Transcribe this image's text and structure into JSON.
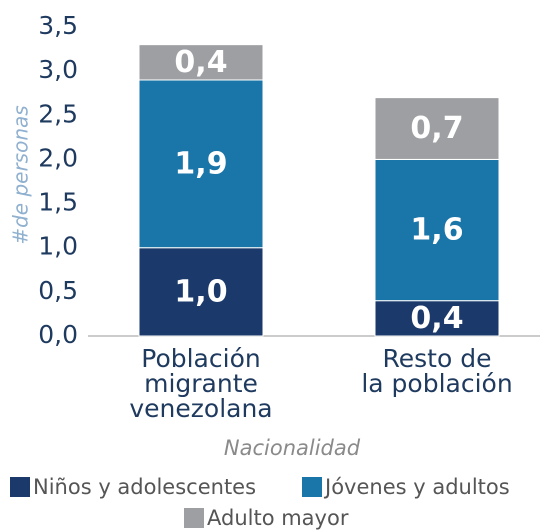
{
  "chart_data": {
    "type": "stacked_bar",
    "categories": [
      "Población\nmigrante\nvenezolana",
      "Resto de\nla población"
    ],
    "series": [
      {
        "name": "Niños y adolescentes",
        "color": "#1b3a6b",
        "values": [
          1.0,
          0.4
        ],
        "value_labels": [
          "1,0",
          "0,4"
        ]
      },
      {
        "name": "Jóvenes y adultos",
        "color": "#1a75a8",
        "values": [
          1.9,
          1.6
        ],
        "value_labels": [
          "1,9",
          "1,6"
        ]
      },
      {
        "name": "Adulto mayor",
        "color": "#9d9fa2",
        "values": [
          0.4,
          0.7
        ],
        "value_labels": [
          "0,4",
          "0,7"
        ]
      }
    ],
    "ylabel": "#de personas",
    "xlabel": "Nacionalidad",
    "ylim": [
      0,
      3.5
    ],
    "yticks": [
      {
        "value": 0,
        "label": "0,0"
      },
      {
        "value": 0.5,
        "label": "0,5"
      },
      {
        "value": 1,
        "label": "1,0"
      },
      {
        "value": 1.5,
        "label": "1,5"
      },
      {
        "value": 2,
        "label": "2,0"
      },
      {
        "value": 2.5,
        "label": "2,5"
      },
      {
        "value": 3,
        "label": "3,0"
      },
      {
        "value": 3.5,
        "label": "3,5"
      }
    ],
    "grid": false
  }
}
